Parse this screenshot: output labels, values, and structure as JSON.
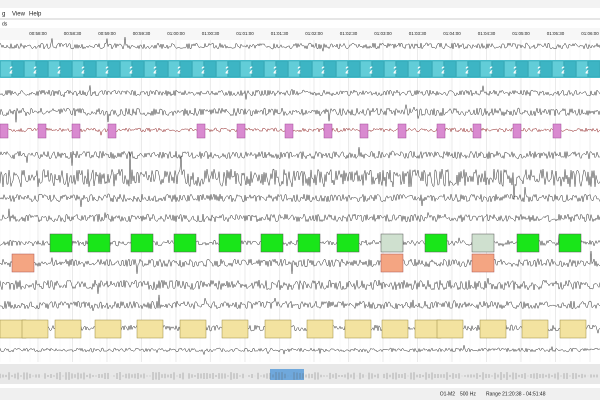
{
  "menu": [
    "g",
    "View",
    "Help"
  ],
  "section_label": "ds",
  "time_ticks": [
    "00:58:00",
    "00:58:30",
    "00:59:00",
    "00:59:30",
    "01:00:00",
    "01:00:30",
    "01:01:00",
    "01:01:30",
    "01:02:00",
    "01:02:30",
    "01:03:00",
    "01:03:30",
    "01:04:00",
    "01:04:30",
    "01:05:00",
    "01:05:30",
    "01:06:00"
  ],
  "stage_label": "2",
  "status": {
    "channel": "O1-M2",
    "rate": "500 Hz",
    "range": "Range 21:20:38 - 04:51:48"
  }
}
